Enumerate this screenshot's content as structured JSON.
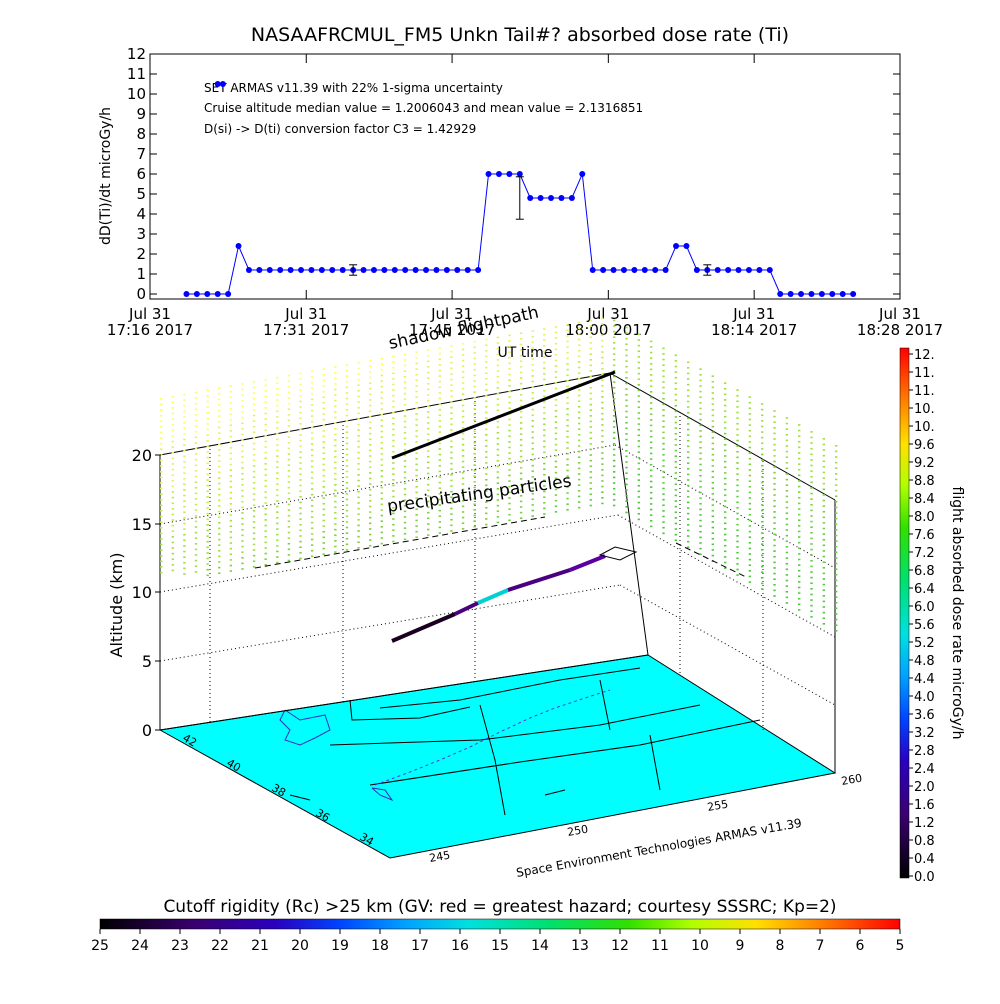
{
  "chart_data": [
    {
      "type": "line",
      "title": "NASAAFRCMUL_FM5 Unkn Tail#? absorbed dose rate (Ti)",
      "ylabel": "dD(Ti)/dt microGy/h",
      "xlabel": "UT time",
      "ylim": [
        0,
        12
      ],
      "yticks": [
        "0",
        "1",
        "2",
        "3",
        "4",
        "5",
        "6",
        "7",
        "8",
        "9",
        "10",
        "11",
        "12"
      ],
      "xlim": [
        0,
        72
      ],
      "xticks": [
        {
          "x": 0,
          "line1": "Jul 31",
          "line2": "17:16 2017"
        },
        {
          "x": 15,
          "line1": "Jul 31",
          "line2": "17:31 2017"
        },
        {
          "x": 29,
          "line1": "Jul 31",
          "line2": "17:45 2017"
        },
        {
          "x": 44,
          "line1": "Jul 31",
          "line2": "18:00 2017"
        },
        {
          "x": 58,
          "line1": "Jul 31",
          "line2": "18:14 2017"
        },
        {
          "x": 72,
          "line1": "Jul 31",
          "line2": "18:28 2017"
        }
      ],
      "annotations": [
        "SET ARMAS v11.39 with 22% 1-sigma uncertainty",
        "Cruise altitude median value = 1.2006043 and mean value = 2.1316851",
        "D(si) -> D(ti) conversion factor C3 = 1.42929"
      ],
      "series": [
        {
          "color": "#0000ff",
          "x": [
            3.5,
            4.5,
            5.5,
            6.5,
            7.5,
            8.5,
            9.5,
            10.5,
            11.5,
            12.5,
            13.5,
            14.5,
            15.5,
            16.5,
            17.5,
            18.5,
            19.5,
            20.5,
            21.5,
            22.5,
            23.5,
            24.5,
            25.5,
            26.5,
            27.5,
            28.5,
            29.5,
            30.5,
            31.5,
            32.5,
            33.5,
            34.5,
            35.5,
            36.5,
            37.5,
            38.5,
            39.5,
            40.5,
            41.5,
            42.5,
            43.5,
            44.5,
            45.5,
            46.5,
            47.5,
            48.5,
            49.5,
            50.5,
            51.5,
            52.5,
            53.5,
            54.5,
            55.5,
            56.5,
            57.5,
            58.5,
            59.5,
            60.5,
            61.5,
            62.5,
            63.5,
            64.5,
            65.5,
            66.5,
            67.5
          ],
          "values": [
            0,
            0,
            0,
            0,
            0,
            2.4,
            1.2,
            1.2,
            1.2,
            1.2,
            1.2,
            1.2,
            1.2,
            1.2,
            1.2,
            1.2,
            1.2,
            1.2,
            1.2,
            1.2,
            1.2,
            1.2,
            1.2,
            1.2,
            1.2,
            1.2,
            1.2,
            1.2,
            1.2,
            6.0,
            6.0,
            6.0,
            6.0,
            4.8,
            4.8,
            4.8,
            4.8,
            4.8,
            6.0,
            1.2,
            1.2,
            1.2,
            1.2,
            1.2,
            1.2,
            1.2,
            1.2,
            2.4,
            2.4,
            1.2,
            1.2,
            1.2,
            1.2,
            1.2,
            1.2,
            1.2,
            1.2,
            0,
            0,
            0,
            0,
            0,
            0,
            0,
            0
          ]
        }
      ],
      "error_bars": [
        {
          "x": 19.5,
          "value": 1.2,
          "low": 0.94,
          "high": 1.46
        },
        {
          "x": 35.5,
          "value": 4.8,
          "low": 3.74,
          "high": 5.86
        },
        {
          "x": 53.5,
          "value": 1.2,
          "low": 0.94,
          "high": 1.46
        }
      ],
      "legend_markers": [
        {
          "x": 6.5,
          "value": 10.5
        },
        {
          "x": 7.0,
          "value": 10.5
        }
      ]
    },
    {
      "type": "scatter",
      "subtype": "3d-flight-profile",
      "zlabel": "Altitude (km)",
      "zlim": [
        0,
        20
      ],
      "zticks": [
        "0",
        "5",
        "10",
        "15",
        "20"
      ],
      "lat_ticks": [
        "34",
        "36",
        "38",
        "40",
        "42"
      ],
      "lon_ticks": [
        "245",
        "250",
        "255",
        "260"
      ],
      "annotations": [
        "shadow flightpath",
        "precipitating particles"
      ],
      "credit": "Space Environment Technologies ARMAS v11.39",
      "ground_color": "#00ffff",
      "flight_colors": [
        "#1a0020",
        "#4b0082",
        "#00d0d0",
        "#4b0082",
        "#5a00a0"
      ]
    },
    {
      "type": "heatmap",
      "colorbar": "vertical",
      "label": "flight absorbed dose rate microGy/h",
      "ticks": [
        "0.0",
        "0.4",
        "0.8",
        "1.2",
        "1.6",
        "2.0",
        "2.4",
        "2.8",
        "3.2",
        "3.6",
        "4.0",
        "4.4",
        "4.8",
        "5.2",
        "5.6",
        "6.0",
        "6.4",
        "6.8",
        "7.2",
        "7.6",
        "8.0",
        "8.4",
        "8.8",
        "9.2",
        "9.6",
        "10.",
        "10.",
        "11.",
        "11.",
        "12."
      ]
    },
    {
      "type": "heatmap",
      "colorbar": "horizontal",
      "label": "Cutoff rigidity (Rc) >25 km (GV: red = greatest hazard; courtesy SSSRC; Kp=2)",
      "ticks": [
        "25",
        "24",
        "23",
        "22",
        "21",
        "20",
        "19",
        "18",
        "17",
        "16",
        "15",
        "14",
        "13",
        "12",
        "11",
        "10",
        "9",
        "8",
        "7",
        "6",
        "5"
      ]
    }
  ]
}
